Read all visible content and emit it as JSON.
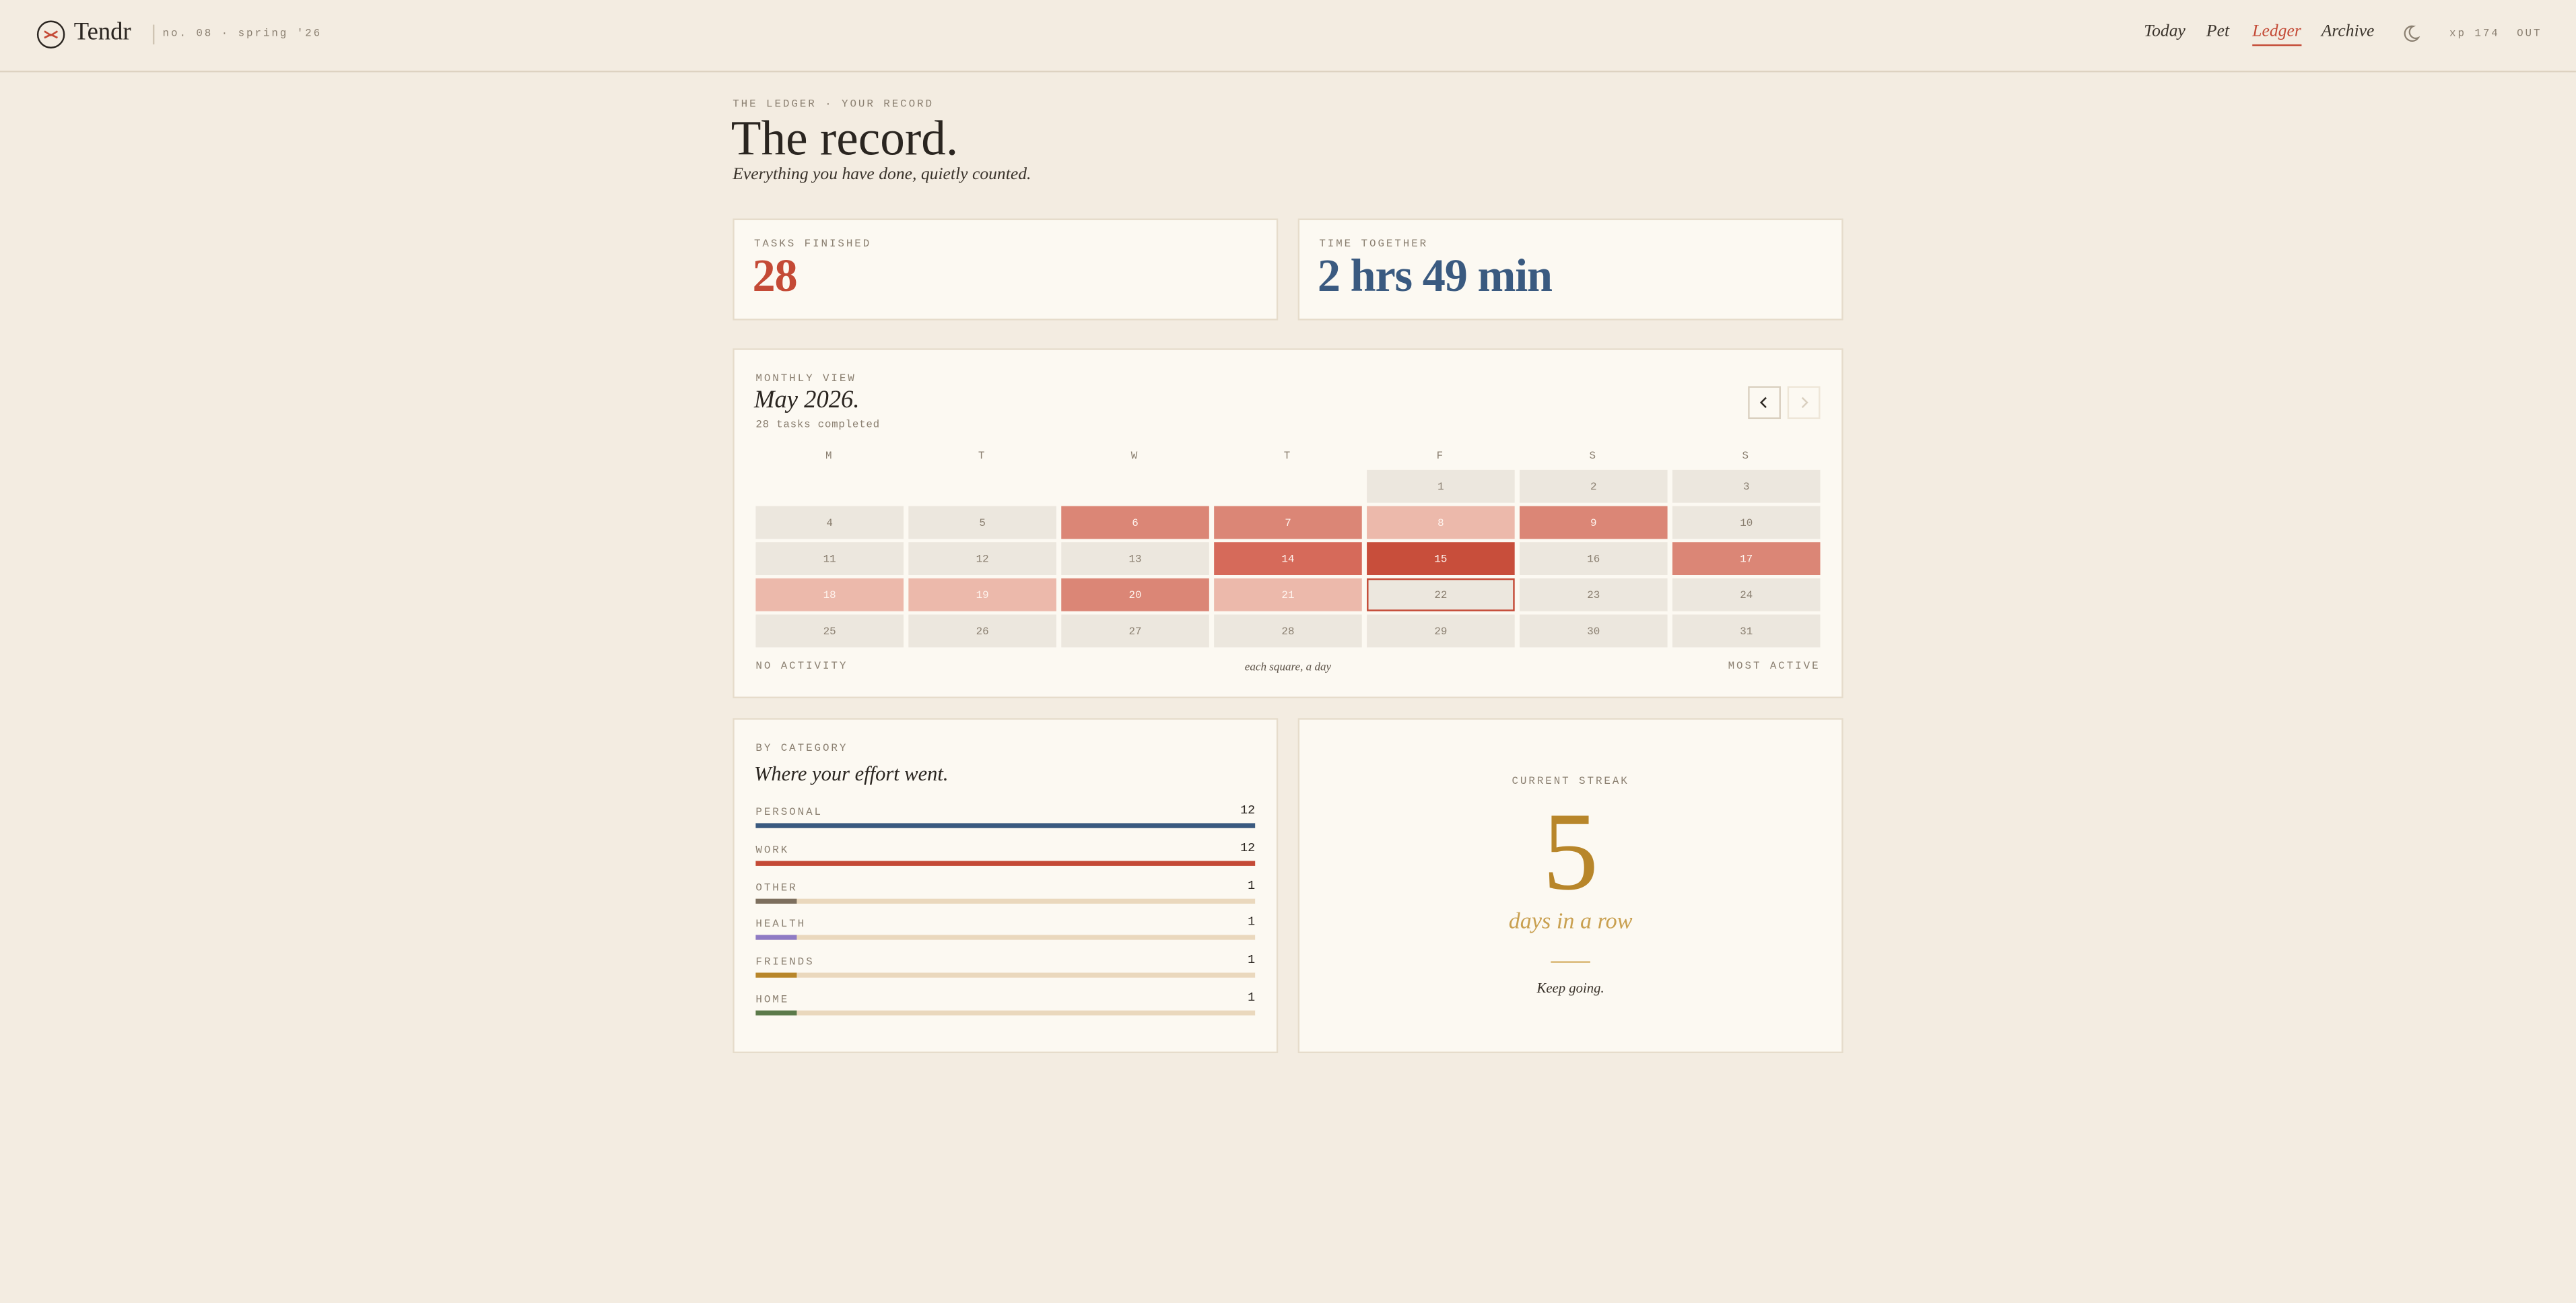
{
  "header": {
    "brand": "Tendr",
    "issue": "no. 08 · spring '26",
    "nav": [
      {
        "label": "Today",
        "active": false
      },
      {
        "label": "Pet",
        "active": false
      },
      {
        "label": "Ledger",
        "active": true
      },
      {
        "label": "Archive",
        "active": false
      }
    ],
    "xp": "xp 174",
    "logout": "OUT"
  },
  "intro": {
    "eyebrow": "THE LEDGER · YOUR RECORD",
    "title": "The record.",
    "subtitle": "Everything you have done, quietly counted."
  },
  "stats": [
    {
      "label": "TASKS FINISHED",
      "value": 28,
      "color": "#c44a36"
    },
    {
      "label": "TIME TOGETHER",
      "value": "2 hrs 49 min",
      "color": "#3a5a80"
    }
  ],
  "calendar": {
    "eyebrow": "MONTHLY VIEW",
    "month": "May 2026.",
    "summary": "28 tasks completed",
    "weekdays": [
      "M",
      "T",
      "W",
      "T",
      "F",
      "S",
      "S"
    ],
    "level_colors": [
      "#ece7de",
      "#ecb9ab",
      "#db8676",
      "#d66a5a",
      "#c84e3b"
    ],
    "today": 22,
    "weeks": [
      [
        null,
        null,
        null,
        null,
        {
          "day": 1,
          "level": 0
        },
        {
          "day": 2,
          "level": 0
        },
        {
          "day": 3,
          "level": 0
        }
      ],
      [
        {
          "day": 4,
          "level": 0
        },
        {
          "day": 5,
          "level": 0
        },
        {
          "day": 6,
          "level": 2
        },
        {
          "day": 7,
          "level": 2
        },
        {
          "day": 8,
          "level": 1
        },
        {
          "day": 9,
          "level": 2
        },
        {
          "day": 10,
          "level": 0
        }
      ],
      [
        {
          "day": 11,
          "level": 0
        },
        {
          "day": 12,
          "level": 0
        },
        {
          "day": 13,
          "level": 0
        },
        {
          "day": 14,
          "level": 3
        },
        {
          "day": 15,
          "level": 4
        },
        {
          "day": 16,
          "level": 0
        },
        {
          "day": 17,
          "level": 2
        }
      ],
      [
        {
          "day": 18,
          "level": 1
        },
        {
          "day": 19,
          "level": 1
        },
        {
          "day": 20,
          "level": 2
        },
        {
          "day": 21,
          "level": 1
        },
        {
          "day": 22,
          "level": 0
        },
        {
          "day": 23,
          "level": 0
        },
        {
          "day": 24,
          "level": 0
        }
      ],
      [
        {
          "day": 25,
          "level": 0
        },
        {
          "day": 26,
          "level": 0
        },
        {
          "day": 27,
          "level": 0
        },
        {
          "day": 28,
          "level": 0
        },
        {
          "day": 29,
          "level": 0
        },
        {
          "day": 30,
          "level": 0
        },
        {
          "day": 31,
          "level": 0
        }
      ]
    ],
    "legend_low": "NO ACTIVITY",
    "legend_note": "each square, a day",
    "legend_high": "MOST ACTIVE"
  },
  "categories": {
    "eyebrow": "BY CATEGORY",
    "title": "Where your effort went.",
    "items": [
      {
        "name": "PERSONAL",
        "value": 12,
        "color": "#3a5a80"
      },
      {
        "name": "WORK",
        "value": 12,
        "color": "#c44a36"
      },
      {
        "name": "OTHER",
        "value": 1,
        "color": "#7d6f5e"
      },
      {
        "name": "HEALTH",
        "value": 1,
        "color": "#8f7bc4"
      },
      {
        "name": "FRIENDS",
        "value": 1,
        "color": "#b8862a"
      },
      {
        "name": "HOME",
        "value": 1,
        "color": "#5b7a4a"
      }
    ]
  },
  "streak": {
    "eyebrow": "CURRENT STREAK",
    "value": 5,
    "unit": "days in a row",
    "note": "Keep going."
  }
}
